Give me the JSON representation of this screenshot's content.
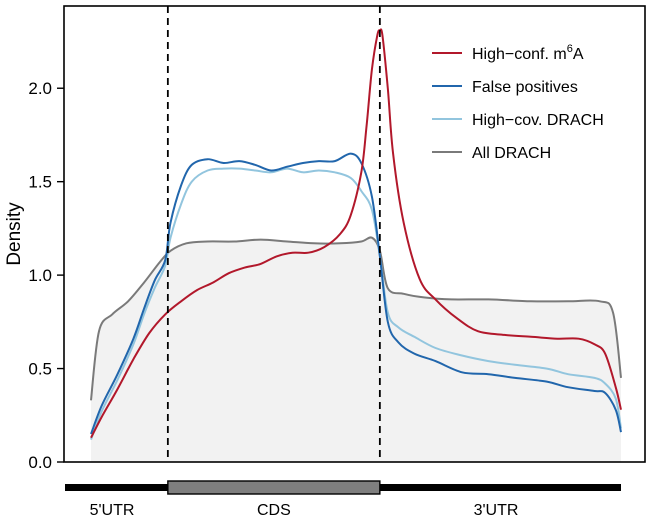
{
  "chart_data": {
    "type": "line",
    "ylabel": "Density",
    "xlim": [
      0,
      1
    ],
    "ylim": [
      0,
      2.3
    ],
    "yticks": [
      "0.0",
      "0.5",
      "1.0",
      "1.5",
      "2.0"
    ],
    "ytick_values": [
      0,
      0.5,
      1.0,
      1.5,
      2.0
    ],
    "boundaries": [
      0.145,
      0.545
    ],
    "legend_position": "top-right",
    "grid": false,
    "regions": [
      {
        "label": "5'UTR",
        "start": 0,
        "end": 0.145
      },
      {
        "label": "CDS",
        "start": 0.145,
        "end": 0.545
      },
      {
        "label": "3'UTR",
        "start": 0.545,
        "end": 1
      }
    ],
    "series": [
      {
        "name": "High−conf. m",
        "name_sup": "6",
        "name_suffix": "A",
        "color": "#b2182b",
        "x": [
          0,
          0.02,
          0.05,
          0.08,
          0.11,
          0.14,
          0.17,
          0.2,
          0.23,
          0.26,
          0.29,
          0.32,
          0.35,
          0.38,
          0.41,
          0.44,
          0.47,
          0.49,
          0.51,
          0.52,
          0.53,
          0.54,
          0.545,
          0.55,
          0.56,
          0.57,
          0.59,
          0.62,
          0.65,
          0.69,
          0.73,
          0.78,
          0.83,
          0.88,
          0.92,
          0.95,
          0.97,
          0.99,
          1.0
        ],
        "values": [
          0.13,
          0.24,
          0.39,
          0.55,
          0.69,
          0.79,
          0.86,
          0.92,
          0.96,
          1.01,
          1.04,
          1.06,
          1.1,
          1.12,
          1.12,
          1.15,
          1.22,
          1.32,
          1.55,
          1.8,
          2.1,
          2.28,
          2.31,
          2.28,
          2.0,
          1.65,
          1.28,
          0.98,
          0.87,
          0.77,
          0.7,
          0.68,
          0.67,
          0.66,
          0.66,
          0.63,
          0.58,
          0.4,
          0.28
        ]
      },
      {
        "name": "False positives",
        "color": "#2166ac",
        "x": [
          0,
          0.02,
          0.05,
          0.08,
          0.1,
          0.12,
          0.14,
          0.15,
          0.17,
          0.19,
          0.22,
          0.25,
          0.28,
          0.31,
          0.34,
          0.37,
          0.4,
          0.43,
          0.46,
          0.49,
          0.51,
          0.53,
          0.545,
          0.56,
          0.58,
          0.61,
          0.65,
          0.7,
          0.75,
          0.8,
          0.86,
          0.9,
          0.95,
          0.97,
          0.99,
          1.0
        ],
        "values": [
          0.15,
          0.3,
          0.47,
          0.66,
          0.82,
          0.97,
          1.08,
          1.28,
          1.48,
          1.59,
          1.62,
          1.6,
          1.61,
          1.59,
          1.56,
          1.58,
          1.6,
          1.61,
          1.61,
          1.65,
          1.6,
          1.42,
          1.1,
          0.75,
          0.64,
          0.58,
          0.54,
          0.48,
          0.47,
          0.45,
          0.43,
          0.4,
          0.38,
          0.37,
          0.28,
          0.16
        ]
      },
      {
        "name": "High−cov. DRACH",
        "color": "#92c5de",
        "x": [
          0,
          0.02,
          0.05,
          0.08,
          0.1,
          0.12,
          0.14,
          0.15,
          0.17,
          0.19,
          0.22,
          0.25,
          0.28,
          0.31,
          0.34,
          0.37,
          0.4,
          0.43,
          0.46,
          0.49,
          0.51,
          0.53,
          0.545,
          0.56,
          0.58,
          0.61,
          0.65,
          0.7,
          0.75,
          0.8,
          0.86,
          0.9,
          0.95,
          0.97,
          0.99,
          1.0
        ],
        "values": [
          0.12,
          0.27,
          0.44,
          0.63,
          0.79,
          0.93,
          1.05,
          1.2,
          1.38,
          1.5,
          1.56,
          1.57,
          1.57,
          1.56,
          1.55,
          1.57,
          1.55,
          1.56,
          1.55,
          1.52,
          1.45,
          1.35,
          1.1,
          0.8,
          0.72,
          0.67,
          0.61,
          0.57,
          0.54,
          0.52,
          0.5,
          0.47,
          0.45,
          0.42,
          0.34,
          0.18
        ]
      },
      {
        "name": "All DRACH",
        "color": "#7a7a7a",
        "x": [
          0,
          0.015,
          0.04,
          0.07,
          0.1,
          0.13,
          0.15,
          0.18,
          0.22,
          0.27,
          0.32,
          0.37,
          0.42,
          0.47,
          0.51,
          0.53,
          0.545,
          0.56,
          0.59,
          0.63,
          0.68,
          0.75,
          0.83,
          0.9,
          0.96,
          0.985,
          1.0
        ],
        "values": [
          0.33,
          0.7,
          0.79,
          0.86,
          0.96,
          1.07,
          1.13,
          1.17,
          1.18,
          1.18,
          1.19,
          1.18,
          1.17,
          1.17,
          1.18,
          1.2,
          1.13,
          0.93,
          0.9,
          0.88,
          0.87,
          0.87,
          0.86,
          0.86,
          0.86,
          0.8,
          0.45
        ]
      }
    ]
  }
}
